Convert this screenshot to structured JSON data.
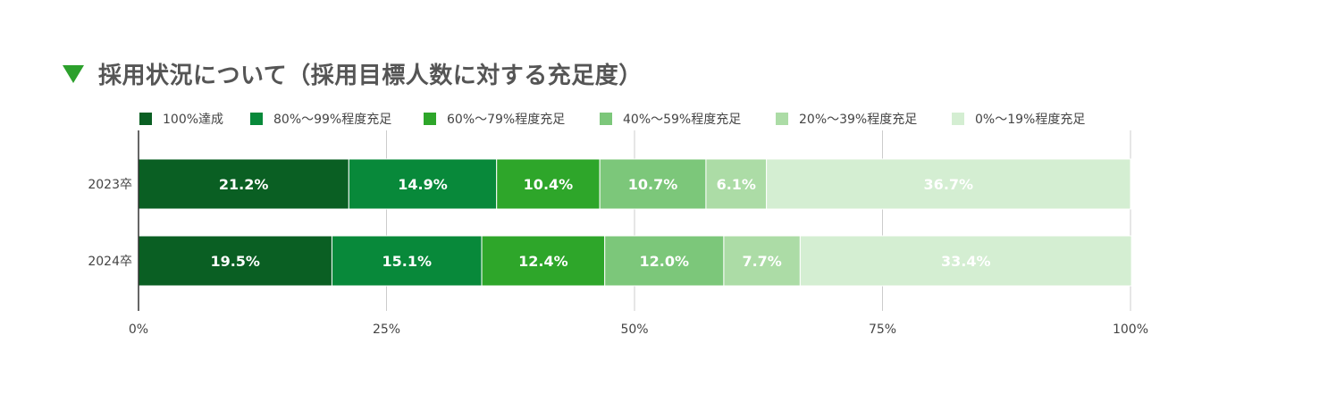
{
  "title": "採用状況について（採用目標人数に対する充足度）",
  "chart_data": {
    "type": "bar",
    "orientation": "horizontal",
    "stacked": true,
    "categories": [
      "2023卒",
      "2024卒"
    ],
    "series": [
      {
        "name": "100%達成",
        "color": "#0a5f23",
        "values": [
          21.2,
          19.5
        ],
        "labels": [
          "21.2%",
          "19.5%"
        ]
      },
      {
        "name": "80%～99%程度充足",
        "color": "#08893a",
        "values": [
          14.9,
          15.1
        ],
        "labels": [
          "14.9%",
          "15.1%"
        ]
      },
      {
        "name": "60%～79%程度充足",
        "color": "#2ea62a",
        "values": [
          10.4,
          12.4
        ],
        "labels": [
          "10.4%",
          "12.4%"
        ]
      },
      {
        "name": "40%～59%程度充足",
        "color": "#7cc77a",
        "values": [
          10.7,
          12.0
        ],
        "labels": [
          "10.7%",
          "12.0%"
        ]
      },
      {
        "name": "20%～39%程度充足",
        "color": "#acdca6",
        "values": [
          6.1,
          7.7
        ],
        "labels": [
          "6.1%",
          "7.7%"
        ]
      },
      {
        "name": "0%～19%程度充足",
        "color": "#d4eed2",
        "values": [
          36.7,
          33.4
        ],
        "labels": [
          "36.7%",
          "33.4%"
        ]
      }
    ],
    "xlim": [
      0,
      100
    ],
    "xticks": [
      0,
      25,
      50,
      75,
      100
    ],
    "xtick_labels": [
      "0%",
      "25%",
      "50%",
      "75%",
      "100%"
    ],
    "grid": true,
    "legend_position": "top"
  }
}
